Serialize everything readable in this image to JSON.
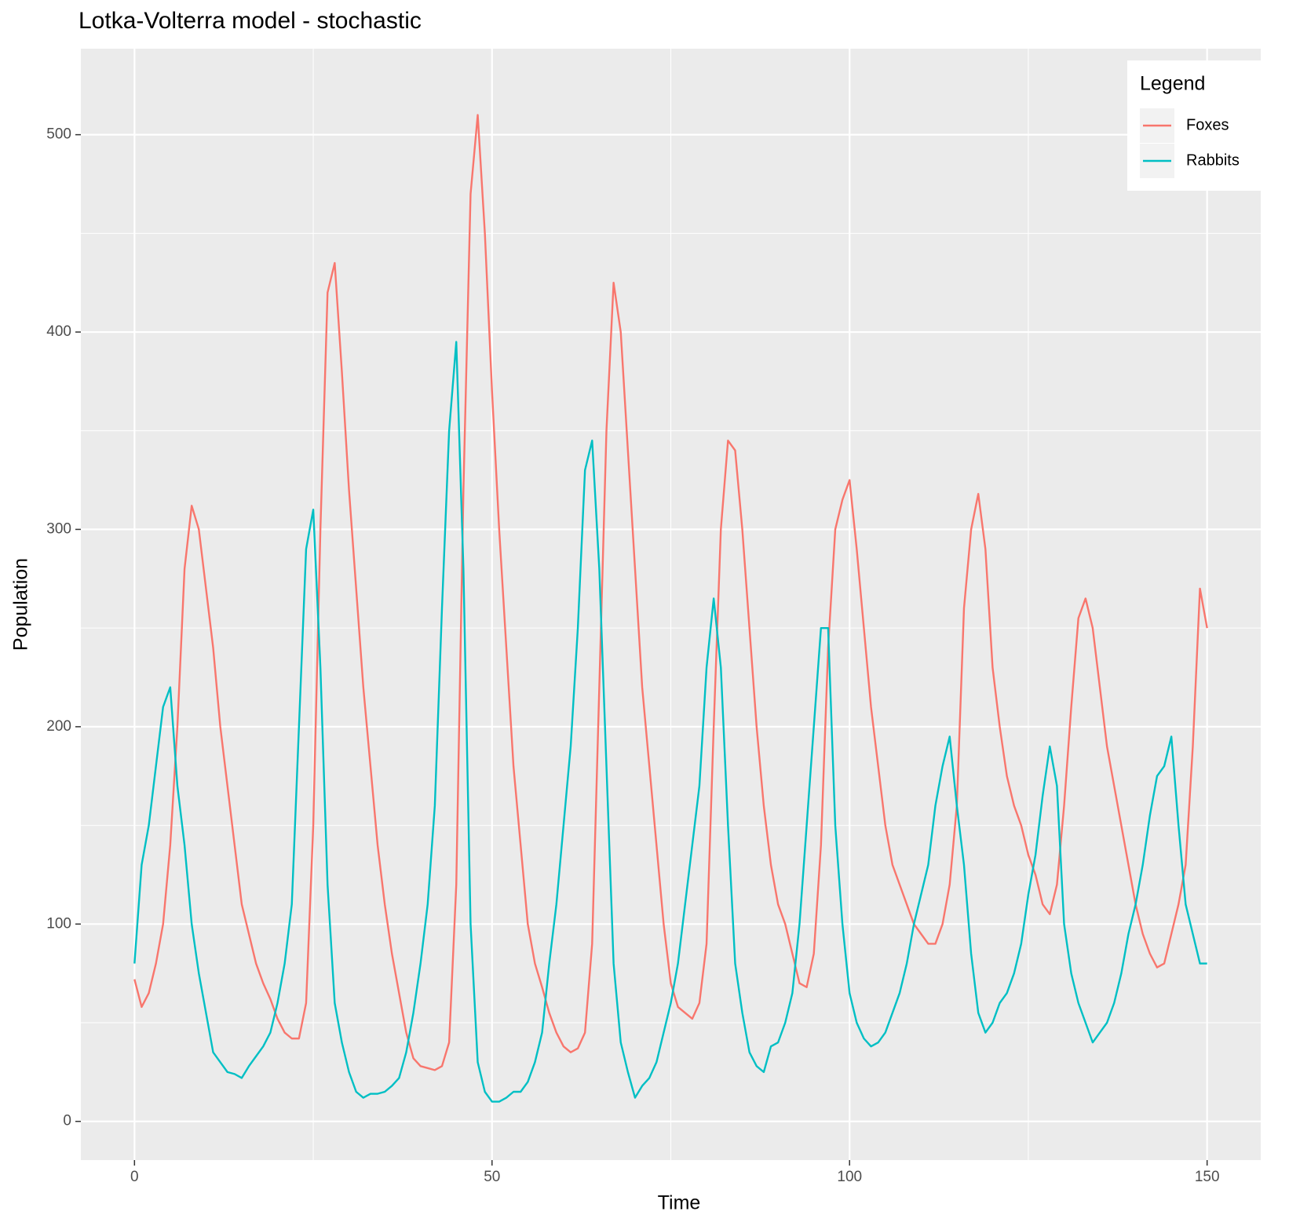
{
  "chart_data": {
    "type": "line",
    "title": "Lotka-Volterra model - stochastic",
    "x_label": "Time",
    "y_label": "Population",
    "legend_title": "Legend",
    "legend_position": "top-right",
    "grid": true,
    "xlim": [
      -7.5,
      157.5
    ],
    "xticks": [
      0,
      50,
      100,
      150
    ],
    "xminor": [
      25,
      75,
      125
    ],
    "ylim": [
      -19.6,
      543.6
    ],
    "yticks": [
      0,
      100,
      200,
      300,
      400,
      500
    ],
    "yminor": [
      50,
      150,
      250,
      350,
      450
    ],
    "x": [
      0,
      1,
      2,
      3,
      4,
      5,
      6,
      7,
      8,
      9,
      10,
      11,
      12,
      13,
      14,
      15,
      16,
      17,
      18,
      19,
      20,
      21,
      22,
      23,
      24,
      25,
      26,
      27,
      28,
      29,
      30,
      31,
      32,
      33,
      34,
      35,
      36,
      37,
      38,
      39,
      40,
      41,
      42,
      43,
      44,
      45,
      46,
      47,
      48,
      49,
      50,
      51,
      52,
      53,
      54,
      55,
      56,
      57,
      58,
      59,
      60,
      61,
      62,
      63,
      64,
      65,
      66,
      67,
      68,
      69,
      70,
      71,
      72,
      73,
      74,
      75,
      76,
      77,
      78,
      79,
      80,
      81,
      82,
      83,
      84,
      85,
      86,
      87,
      88,
      89,
      90,
      91,
      92,
      93,
      94,
      95,
      96,
      97,
      98,
      99,
      100,
      101,
      102,
      103,
      104,
      105,
      106,
      107,
      108,
      109,
      110,
      111,
      112,
      113,
      114,
      115,
      116,
      117,
      118,
      119,
      120,
      121,
      122,
      123,
      124,
      125,
      126,
      127,
      128,
      129,
      130,
      131,
      132,
      133,
      134,
      135,
      136,
      137,
      138,
      139,
      140,
      141,
      142,
      143,
      144,
      145,
      146,
      147,
      148,
      149,
      150
    ],
    "series": [
      {
        "name": "Foxes",
        "color": "#F8766D",
        "values": [
          72,
          58,
          65,
          80,
          100,
          140,
          200,
          280,
          312,
          300,
          270,
          240,
          200,
          170,
          140,
          110,
          95,
          80,
          70,
          62,
          52,
          45,
          42,
          42,
          60,
          150,
          300,
          420,
          435,
          380,
          320,
          270,
          220,
          180,
          140,
          110,
          85,
          65,
          45,
          32,
          28,
          27,
          26,
          28,
          40,
          120,
          320,
          470,
          510,
          450,
          370,
          300,
          240,
          180,
          140,
          100,
          80,
          68,
          55,
          45,
          38,
          35,
          37,
          45,
          90,
          220,
          350,
          425,
          400,
          340,
          280,
          220,
          180,
          140,
          100,
          70,
          58,
          55,
          52,
          60,
          90,
          200,
          300,
          345,
          340,
          300,
          250,
          200,
          160,
          130,
          110,
          100,
          85,
          70,
          68,
          85,
          140,
          240,
          300,
          315,
          325,
          290,
          250,
          210,
          180,
          150,
          130,
          120,
          110,
          100,
          95,
          90,
          90,
          100,
          120,
          160,
          260,
          300,
          318,
          290,
          230,
          200,
          175,
          160,
          150,
          135,
          125,
          110,
          105,
          120,
          160,
          210,
          255,
          265,
          250,
          220,
          190,
          170,
          150,
          130,
          110,
          95,
          85,
          78,
          80,
          95,
          110,
          130,
          190,
          270,
          250
        ]
      },
      {
        "name": "Rabbits",
        "color": "#00BFC4",
        "values": [
          80,
          130,
          150,
          180,
          210,
          220,
          170,
          140,
          100,
          75,
          55,
          35,
          30,
          25,
          24,
          22,
          28,
          33,
          38,
          45,
          60,
          80,
          110,
          200,
          290,
          310,
          230,
          120,
          60,
          40,
          25,
          15,
          12,
          14,
          14,
          15,
          18,
          22,
          35,
          55,
          80,
          110,
          160,
          260,
          350,
          395,
          280,
          100,
          30,
          15,
          10,
          10,
          12,
          15,
          15,
          20,
          30,
          45,
          80,
          110,
          150,
          190,
          250,
          330,
          345,
          280,
          180,
          80,
          40,
          25,
          12,
          18,
          22,
          30,
          45,
          60,
          80,
          110,
          140,
          170,
          230,
          265,
          230,
          150,
          80,
          55,
          35,
          28,
          25,
          38,
          40,
          50,
          65,
          100,
          150,
          200,
          250,
          250,
          150,
          100,
          65,
          50,
          42,
          38,
          40,
          45,
          55,
          65,
          80,
          100,
          115,
          130,
          160,
          180,
          195,
          160,
          130,
          85,
          55,
          45,
          50,
          60,
          65,
          75,
          90,
          115,
          135,
          165,
          190,
          170,
          100,
          75,
          60,
          50,
          40,
          45,
          50,
          60,
          75,
          95,
          110,
          130,
          155,
          175,
          180,
          195,
          150,
          110,
          95,
          80,
          80
        ]
      }
    ]
  }
}
